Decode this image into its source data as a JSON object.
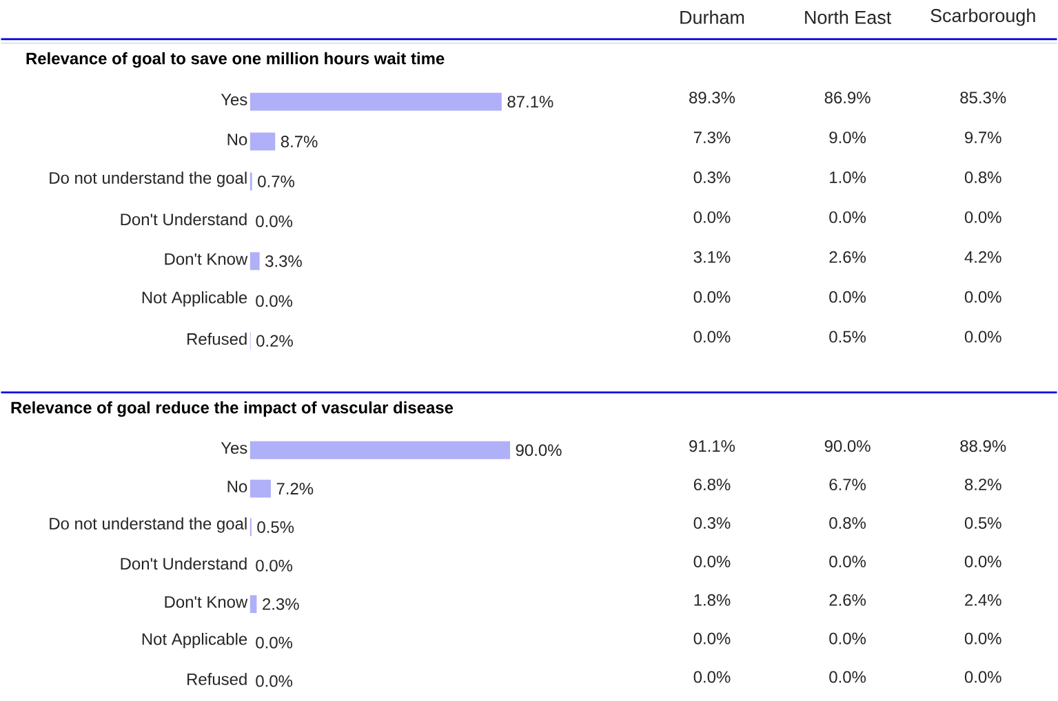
{
  "chart_data": [
    {
      "type": "bar",
      "orientation": "horizontal",
      "title": "Relevance of goal to save one million hours wait time",
      "categories": [
        "Yes",
        "No",
        "Do not understand the goal",
        "Don't Understand",
        "Don't Know",
        "Not Applicable",
        "Refused"
      ],
      "values": [
        87.1,
        8.7,
        0.7,
        0.0,
        3.3,
        0.0,
        0.2
      ],
      "value_labels": [
        "87.1%",
        "8.7%",
        "0.7%",
        "0.0%",
        "3.3%",
        "0.0%",
        "0.2%"
      ],
      "color": "#b0b0f8",
      "tick_labels": "y"
    },
    {
      "type": "other",
      "categories": [
        "Durham",
        "North East",
        "Scarborough"
      ],
      "cell_labels": [
        [
          "89.3%",
          "86.9%",
          "85.3%"
        ],
        [
          "7.3%",
          "9.0%",
          "9.7%"
        ],
        [
          "0.3%",
          "1.0%",
          "0.8%"
        ],
        [
          "0.0%",
          "0.0%",
          "0.0%"
        ],
        [
          "3.1%",
          "2.6%",
          "4.2%"
        ],
        [
          "0.0%",
          "0.0%",
          "0.0%"
        ],
        [
          "0.0%",
          "0.5%",
          "0.0%"
        ]
      ]
    },
    {
      "type": "bar",
      "orientation": "horizontal",
      "title": "Relevance of goal reduce the impact of vascular disease",
      "categories": [
        "Yes",
        "No",
        "Do not understand the goal",
        "Don't Understand",
        "Don't Know",
        "Not Applicable",
        "Refused"
      ],
      "values": [
        90.0,
        7.2,
        0.5,
        0.0,
        2.3,
        0.0,
        0.0
      ],
      "value_labels": [
        "90.0%",
        "7.2%",
        "0.5%",
        "0.0%",
        "2.3%",
        "0.0%",
        "0.0%"
      ],
      "color": "#b0b0f8",
      "tick_labels": "y"
    },
    {
      "type": "other",
      "cell_labels": [
        [
          "91.1%",
          "90.0%",
          "88.9%"
        ],
        [
          "6.8%",
          "6.7%",
          "8.2%"
        ],
        [
          "0.3%",
          "0.8%",
          "0.5%"
        ],
        [
          "0.0%",
          "0.0%",
          "0.0%"
        ],
        [
          "1.8%",
          "2.6%",
          "2.4%"
        ],
        [
          "0.0%",
          "0.0%",
          "0.0%"
        ],
        [
          "0.0%",
          "0.0%",
          "0.0%"
        ]
      ]
    }
  ]
}
